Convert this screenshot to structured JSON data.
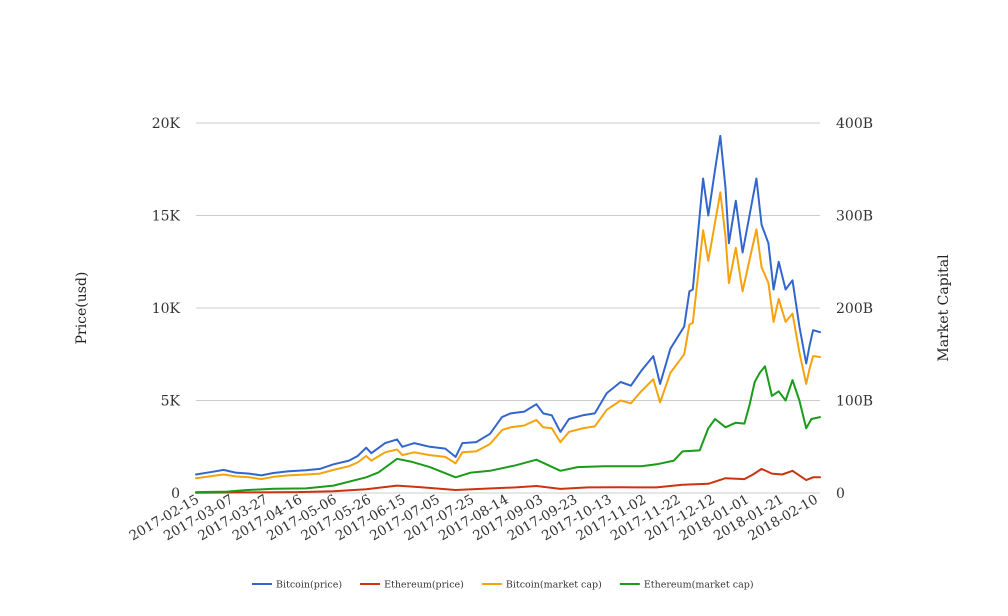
{
  "chart_data": {
    "type": "line",
    "x_start": "2017-02-15",
    "x_end": "2018-02-13",
    "x_ticks": [
      "2017-02-15",
      "2017-03-07",
      "2017-03-27",
      "2017-04-16",
      "2017-05-06",
      "2017-05-26",
      "2017-06-15",
      "2017-07-05",
      "2017-07-25",
      "2017-08-14",
      "2017-09-03",
      "2017-09-23",
      "2017-10-13",
      "2017-11-02",
      "2017-11-22",
      "2017-12-12",
      "2018-01-01",
      "2018-01-21",
      "2018-02-10"
    ],
    "y_left": {
      "label": "Price(usd)",
      "ticks": [
        "0",
        "5K",
        "10K",
        "15K",
        "20K"
      ],
      "range": [
        0,
        20000
      ]
    },
    "y_right": {
      "label": "Market Capital",
      "ticks": [
        "0",
        "100B",
        "200B",
        "300B",
        "400B"
      ],
      "range": [
        0,
        400
      ]
    },
    "grid": true,
    "legend_position": "bottom",
    "series": [
      {
        "name": "Bitcoin(price)",
        "axis": "left",
        "color": "#3366cc",
        "points": [
          [
            "2017-02-15",
            1000
          ],
          [
            "2017-02-25",
            1150
          ],
          [
            "2017-03-03",
            1250
          ],
          [
            "2017-03-10",
            1100
          ],
          [
            "2017-03-18",
            1050
          ],
          [
            "2017-03-25",
            950
          ],
          [
            "2017-04-01",
            1080
          ],
          [
            "2017-04-10",
            1180
          ],
          [
            "2017-04-20",
            1230
          ],
          [
            "2017-04-28",
            1300
          ],
          [
            "2017-05-06",
            1550
          ],
          [
            "2017-05-15",
            1750
          ],
          [
            "2017-05-20",
            2000
          ],
          [
            "2017-05-25",
            2450
          ],
          [
            "2017-05-28",
            2150
          ],
          [
            "2017-06-05",
            2700
          ],
          [
            "2017-06-12",
            2900
          ],
          [
            "2017-06-15",
            2500
          ],
          [
            "2017-06-22",
            2700
          ],
          [
            "2017-07-01",
            2500
          ],
          [
            "2017-07-10",
            2400
          ],
          [
            "2017-07-16",
            1950
          ],
          [
            "2017-07-20",
            2700
          ],
          [
            "2017-07-28",
            2750
          ],
          [
            "2017-08-05",
            3200
          ],
          [
            "2017-08-12",
            4100
          ],
          [
            "2017-08-17",
            4300
          ],
          [
            "2017-08-25",
            4400
          ],
          [
            "2017-09-01",
            4800
          ],
          [
            "2017-09-05",
            4300
          ],
          [
            "2017-09-10",
            4200
          ],
          [
            "2017-09-15",
            3300
          ],
          [
            "2017-09-20",
            4000
          ],
          [
            "2017-09-28",
            4200
          ],
          [
            "2017-10-05",
            4300
          ],
          [
            "2017-10-12",
            5400
          ],
          [
            "2017-10-20",
            6000
          ],
          [
            "2017-10-26",
            5800
          ],
          [
            "2017-11-01",
            6600
          ],
          [
            "2017-11-08",
            7400
          ],
          [
            "2017-11-12",
            5900
          ],
          [
            "2017-11-18",
            7800
          ],
          [
            "2017-11-26",
            9000
          ],
          [
            "2017-11-29",
            10900
          ],
          [
            "2017-12-01",
            11000
          ],
          [
            "2017-12-07",
            17000
          ],
          [
            "2017-12-10",
            15000
          ],
          [
            "2017-12-14",
            17500
          ],
          [
            "2017-12-17",
            19300
          ],
          [
            "2017-12-20",
            16500
          ],
          [
            "2017-12-22",
            13500
          ],
          [
            "2017-12-26",
            15800
          ],
          [
            "2017-12-30",
            13000
          ],
          [
            "2018-01-03",
            15000
          ],
          [
            "2018-01-07",
            17000
          ],
          [
            "2018-01-10",
            14500
          ],
          [
            "2018-01-14",
            13500
          ],
          [
            "2018-01-17",
            11000
          ],
          [
            "2018-01-20",
            12500
          ],
          [
            "2018-01-24",
            11000
          ],
          [
            "2018-01-28",
            11500
          ],
          [
            "2018-02-01",
            9000
          ],
          [
            "2018-02-05",
            7000
          ],
          [
            "2018-02-07",
            8000
          ],
          [
            "2018-02-09",
            8800
          ],
          [
            "2018-02-13",
            8700
          ]
        ]
      },
      {
        "name": "Ethereum(price)",
        "axis": "left",
        "color": "#cc3311",
        "points": [
          [
            "2017-02-15",
            13
          ],
          [
            "2017-03-15",
            30
          ],
          [
            "2017-04-15",
            50
          ],
          [
            "2017-05-06",
            90
          ],
          [
            "2017-05-25",
            200
          ],
          [
            "2017-06-12",
            400
          ],
          [
            "2017-06-25",
            320
          ],
          [
            "2017-07-16",
            160
          ],
          [
            "2017-08-01",
            230
          ],
          [
            "2017-08-20",
            300
          ],
          [
            "2017-09-01",
            380
          ],
          [
            "2017-09-15",
            220
          ],
          [
            "2017-10-01",
            300
          ],
          [
            "2017-10-20",
            310
          ],
          [
            "2017-11-10",
            300
          ],
          [
            "2017-11-25",
            450
          ],
          [
            "2017-12-10",
            500
          ],
          [
            "2017-12-20",
            800
          ],
          [
            "2017-12-31",
            750
          ],
          [
            "2018-01-05",
            1000
          ],
          [
            "2018-01-10",
            1300
          ],
          [
            "2018-01-16",
            1050
          ],
          [
            "2018-01-22",
            1000
          ],
          [
            "2018-01-28",
            1200
          ],
          [
            "2018-02-05",
            700
          ],
          [
            "2018-02-09",
            850
          ],
          [
            "2018-02-13",
            850
          ]
        ]
      },
      {
        "name": "Bitcoin(market cap)",
        "axis": "right",
        "color": "#f5a30c",
        "points": [
          [
            "2017-02-15",
            16
          ],
          [
            "2017-02-25",
            18.5
          ],
          [
            "2017-03-03",
            20
          ],
          [
            "2017-03-10",
            18
          ],
          [
            "2017-03-18",
            17
          ],
          [
            "2017-03-25",
            15
          ],
          [
            "2017-04-01",
            17.5
          ],
          [
            "2017-04-10",
            19
          ],
          [
            "2017-04-20",
            20
          ],
          [
            "2017-04-28",
            21
          ],
          [
            "2017-05-06",
            25
          ],
          [
            "2017-05-15",
            29
          ],
          [
            "2017-05-20",
            33
          ],
          [
            "2017-05-25",
            40
          ],
          [
            "2017-05-28",
            35
          ],
          [
            "2017-06-05",
            44
          ],
          [
            "2017-06-12",
            47
          ],
          [
            "2017-06-15",
            41
          ],
          [
            "2017-06-22",
            44
          ],
          [
            "2017-07-01",
            41
          ],
          [
            "2017-07-10",
            39
          ],
          [
            "2017-07-16",
            32
          ],
          [
            "2017-07-20",
            44
          ],
          [
            "2017-07-28",
            45
          ],
          [
            "2017-08-05",
            53
          ],
          [
            "2017-08-12",
            68
          ],
          [
            "2017-08-17",
            71
          ],
          [
            "2017-08-25",
            73
          ],
          [
            "2017-09-01",
            79
          ],
          [
            "2017-09-05",
            71
          ],
          [
            "2017-09-10",
            70
          ],
          [
            "2017-09-15",
            55
          ],
          [
            "2017-09-20",
            66
          ],
          [
            "2017-09-28",
            70
          ],
          [
            "2017-10-05",
            72
          ],
          [
            "2017-10-12",
            90
          ],
          [
            "2017-10-20",
            100
          ],
          [
            "2017-10-26",
            97
          ],
          [
            "2017-11-01",
            110
          ],
          [
            "2017-11-08",
            123
          ],
          [
            "2017-11-12",
            98
          ],
          [
            "2017-11-18",
            130
          ],
          [
            "2017-11-26",
            150
          ],
          [
            "2017-11-29",
            182
          ],
          [
            "2017-12-01",
            184
          ],
          [
            "2017-12-07",
            284
          ],
          [
            "2017-12-10",
            251
          ],
          [
            "2017-12-14",
            293
          ],
          [
            "2017-12-17",
            325
          ],
          [
            "2017-12-20",
            277
          ],
          [
            "2017-12-22",
            227
          ],
          [
            "2017-12-26",
            265
          ],
          [
            "2017-12-30",
            218
          ],
          [
            "2018-01-03",
            252
          ],
          [
            "2018-01-07",
            285
          ],
          [
            "2018-01-10",
            244
          ],
          [
            "2018-01-14",
            227
          ],
          [
            "2018-01-17",
            185
          ],
          [
            "2018-01-20",
            210
          ],
          [
            "2018-01-24",
            185
          ],
          [
            "2018-01-28",
            194
          ],
          [
            "2018-02-01",
            152
          ],
          [
            "2018-02-05",
            118
          ],
          [
            "2018-02-07",
            135
          ],
          [
            "2018-02-09",
            148
          ],
          [
            "2018-02-13",
            147
          ]
        ]
      },
      {
        "name": "Ethereum(market cap)",
        "axis": "right",
        "color": "#1a9b1a",
        "points": [
          [
            "2017-02-15",
            1
          ],
          [
            "2017-03-05",
            1.5
          ],
          [
            "2017-03-15",
            3
          ],
          [
            "2017-04-01",
            4.5
          ],
          [
            "2017-04-20",
            5
          ],
          [
            "2017-05-06",
            8
          ],
          [
            "2017-05-25",
            17
          ],
          [
            "2017-06-01",
            22
          ],
          [
            "2017-06-12",
            37
          ],
          [
            "2017-06-20",
            34
          ],
          [
            "2017-07-01",
            28
          ],
          [
            "2017-07-16",
            17
          ],
          [
            "2017-07-25",
            22
          ],
          [
            "2017-08-05",
            24
          ],
          [
            "2017-08-20",
            30
          ],
          [
            "2017-09-01",
            36
          ],
          [
            "2017-09-15",
            24
          ],
          [
            "2017-09-25",
            28
          ],
          [
            "2017-10-10",
            29
          ],
          [
            "2017-11-01",
            29
          ],
          [
            "2017-11-10",
            31
          ],
          [
            "2017-11-20",
            35
          ],
          [
            "2017-11-25",
            45
          ],
          [
            "2017-12-05",
            46
          ],
          [
            "2017-12-10",
            70
          ],
          [
            "2017-12-14",
            80
          ],
          [
            "2017-12-20",
            71
          ],
          [
            "2017-12-26",
            76
          ],
          [
            "2017-12-31",
            75
          ],
          [
            "2018-01-03",
            95
          ],
          [
            "2018-01-06",
            120
          ],
          [
            "2018-01-09",
            130
          ],
          [
            "2018-01-12",
            137
          ],
          [
            "2018-01-16",
            105
          ],
          [
            "2018-01-20",
            110
          ],
          [
            "2018-01-24",
            100
          ],
          [
            "2018-01-28",
            122
          ],
          [
            "2018-02-01",
            100
          ],
          [
            "2018-02-05",
            70
          ],
          [
            "2018-02-08",
            80
          ],
          [
            "2018-02-13",
            82
          ]
        ]
      }
    ]
  }
}
